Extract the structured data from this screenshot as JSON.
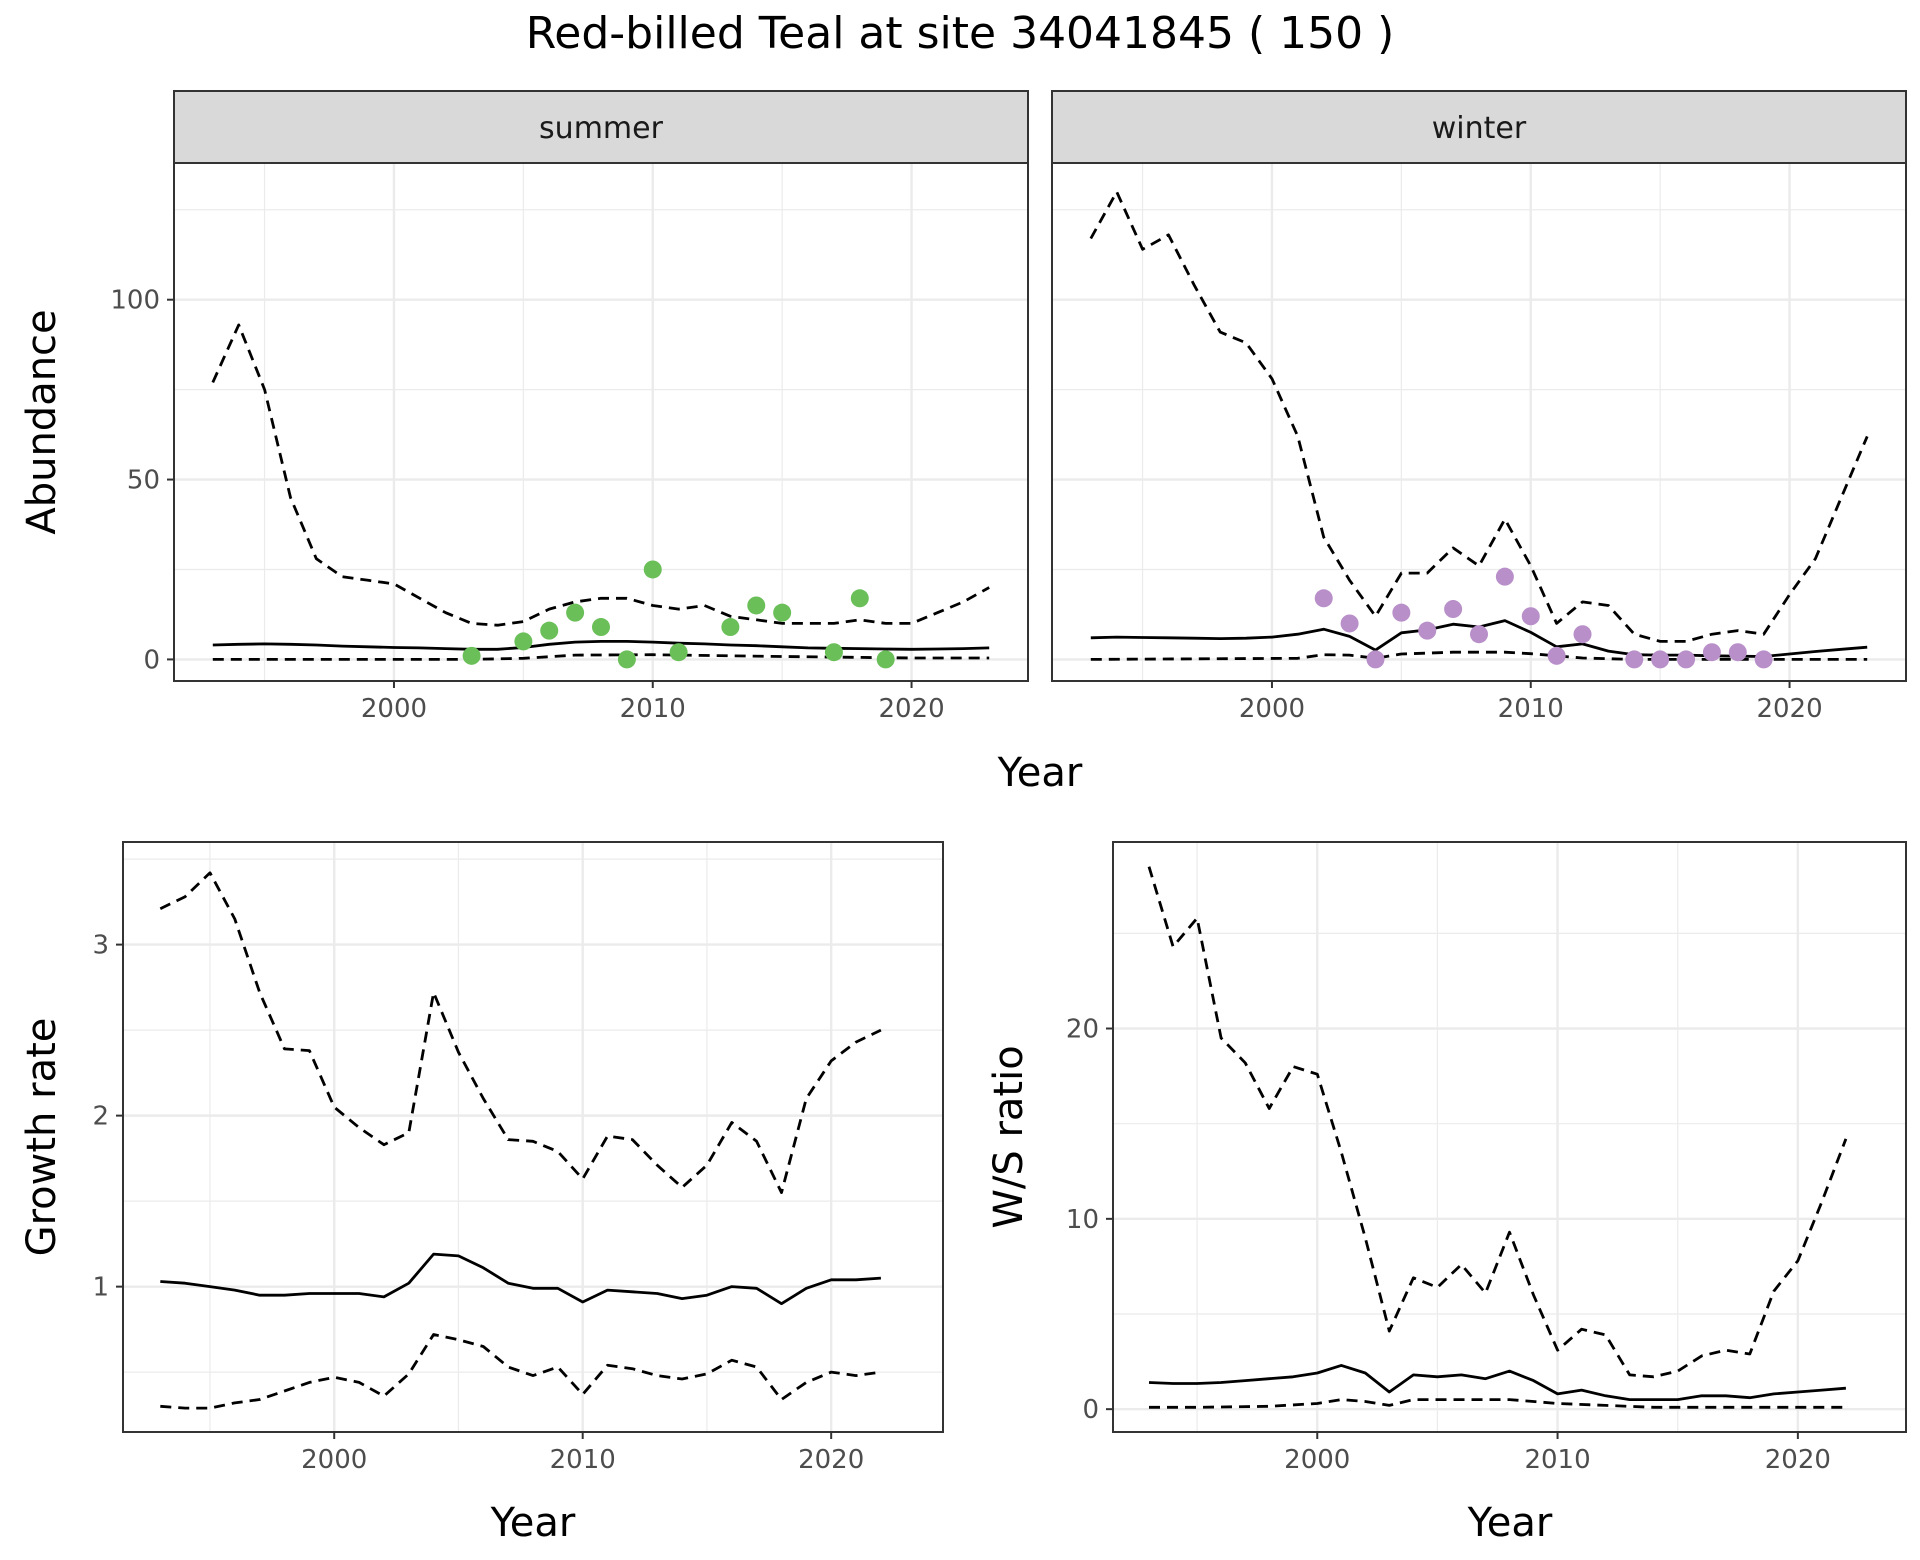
{
  "title": "Red-billed Teal at site 34041845 ( 150 )",
  "colors": {
    "summer_points": "#6abf59",
    "winter_points": "#b88fc9",
    "line": "#000000",
    "strip_bg": "#d9d9d9",
    "grid": "#ebebeb"
  },
  "chart_data": [
    {
      "id": "abundance",
      "type": "line",
      "ylabel": "Abundance",
      "xlabel": "Year",
      "xlim": [
        1991.5,
        2024.5
      ],
      "ylim": [
        -6,
        138
      ],
      "xticks": [
        2000,
        2010,
        2020
      ],
      "yticks": [
        0,
        50,
        100
      ],
      "grid": true,
      "facets": [
        {
          "strip": "summer",
          "point_color": "summer_points",
          "observed": {
            "x": [
              2003,
              2005,
              2006,
              2007,
              2008,
              2009,
              2010,
              2011,
              2013,
              2014,
              2015,
              2017,
              2018,
              2019
            ],
            "y": [
              1,
              5,
              8,
              13,
              9,
              0,
              25,
              2,
              9,
              15,
              13,
              2,
              17,
              0
            ]
          },
          "series": [
            {
              "name": "estimate",
              "dash": "solid",
              "x": [
                1993,
                1994,
                1995,
                1996,
                1997,
                1998,
                1999,
                2000,
                2001,
                2002,
                2003,
                2004,
                2005,
                2006,
                2007,
                2008,
                2009,
                2010,
                2011,
                2012,
                2013,
                2014,
                2015,
                2016,
                2017,
                2018,
                2019,
                2020,
                2021,
                2022,
                2023
              ],
              "y": [
                4,
                4.2,
                4.3,
                4.2,
                4,
                3.7,
                3.5,
                3.3,
                3.2,
                3,
                2.8,
                2.8,
                3.3,
                4.2,
                4.8,
                5,
                5,
                4.8,
                4.5,
                4.3,
                4,
                3.8,
                3.5,
                3.2,
                3.1,
                3,
                2.9,
                2.8,
                2.9,
                3,
                3.2
              ]
            },
            {
              "name": "upper",
              "dash": "dashed",
              "x": [
                1993,
                1994,
                1995,
                1996,
                1997,
                1998,
                1999,
                2000,
                2001,
                2002,
                2003,
                2004,
                2005,
                2006,
                2007,
                2008,
                2009,
                2010,
                2011,
                2012,
                2013,
                2014,
                2015,
                2016,
                2017,
                2018,
                2019,
                2020,
                2021,
                2022,
                2023
              ],
              "y": [
                77,
                93,
                75,
                45,
                28,
                23,
                22,
                21,
                17,
                13,
                10,
                9.5,
                10.5,
                14,
                16,
                17,
                17,
                15,
                14,
                15,
                12,
                11,
                10,
                10,
                10,
                11,
                10,
                10,
                13,
                16,
                20
              ]
            },
            {
              "name": "lower",
              "dash": "dashed",
              "x": [
                1993,
                1995,
                2000,
                2003,
                2005,
                2007,
                2010,
                2015,
                2020,
                2023
              ],
              "y": [
                0,
                0,
                0,
                0,
                0.3,
                1.2,
                1.3,
                0.8,
                0.4,
                0.4
              ]
            }
          ]
        },
        {
          "strip": "winter",
          "point_color": "winter_points",
          "observed": {
            "x": [
              2002,
              2003,
              2004,
              2005,
              2006,
              2007,
              2008,
              2009,
              2010,
              2011,
              2012,
              2014,
              2015,
              2016,
              2017,
              2018,
              2019
            ],
            "y": [
              17,
              10,
              0,
              13,
              8,
              14,
              7,
              23,
              12,
              1,
              7,
              0,
              0,
              0,
              2,
              2,
              0
            ]
          },
          "series": [
            {
              "name": "estimate",
              "dash": "solid",
              "x": [
                1993,
                1994,
                1995,
                1996,
                1997,
                1998,
                1999,
                2000,
                2001,
                2002,
                2003,
                2004,
                2005,
                2006,
                2007,
                2008,
                2009,
                2010,
                2011,
                2012,
                2013,
                2014,
                2015,
                2016,
                2017,
                2018,
                2019,
                2020,
                2021,
                2022,
                2023
              ],
              "y": [
                6,
                6.2,
                6.1,
                6,
                5.9,
                5.8,
                5.9,
                6.2,
                7,
                8.4,
                6.4,
                2.6,
                7.4,
                8.2,
                9.8,
                9,
                10.8,
                7.5,
                3.5,
                4.3,
                2.3,
                1.3,
                1.2,
                1.2,
                1,
                0.9,
                0.8,
                1.5,
                2.2,
                2.8,
                3.4
              ]
            },
            {
              "name": "upper",
              "dash": "dashed",
              "x": [
                1993,
                1994,
                1995,
                1996,
                1997,
                1998,
                1999,
                2000,
                2001,
                2002,
                2003,
                2004,
                2005,
                2006,
                2007,
                2008,
                2009,
                2010,
                2011,
                2012,
                2013,
                2014,
                2015,
                2016,
                2017,
                2018,
                2019,
                2020,
                2021,
                2022,
                2023
              ],
              "y": [
                117,
                130,
                114,
                118,
                104,
                91,
                88,
                78,
                62,
                34,
                22,
                12,
                24,
                24,
                31,
                26,
                39,
                26,
                10,
                16,
                15,
                7,
                5,
                5,
                7,
                8,
                7,
                18,
                28,
                45,
                62
              ]
            },
            {
              "name": "lower",
              "dash": "dashed",
              "x": [
                1993,
                2001,
                2002,
                2003,
                2004,
                2005,
                2007,
                2009,
                2010,
                2012,
                2014,
                2023
              ],
              "y": [
                0,
                0.3,
                1.3,
                1.2,
                0.3,
                1.5,
                2,
                2,
                1.6,
                0.4,
                0,
                0
              ]
            }
          ]
        }
      ]
    },
    {
      "id": "growth_rate",
      "type": "line",
      "ylabel": "Growth rate",
      "xlabel": "Year",
      "xlim": [
        1991.5,
        2024.5
      ],
      "ylim": [
        0.15,
        3.6
      ],
      "xticks": [
        2000,
        2010,
        2020
      ],
      "yticks": [
        1,
        2,
        3
      ],
      "grid": true,
      "series": [
        {
          "name": "estimate",
          "dash": "solid",
          "x": [
            1993,
            1994,
            1995,
            1996,
            1997,
            1998,
            1999,
            2000,
            2001,
            2002,
            2003,
            2004,
            2005,
            2006,
            2007,
            2008,
            2009,
            2010,
            2011,
            2012,
            2013,
            2014,
            2015,
            2016,
            2017,
            2018,
            2019,
            2020,
            2021,
            2022
          ],
          "y": [
            1.03,
            1.02,
            1,
            0.98,
            0.95,
            0.95,
            0.96,
            0.96,
            0.96,
            0.94,
            1.02,
            1.19,
            1.18,
            1.11,
            1.02,
            0.99,
            0.99,
            0.91,
            0.98,
            0.97,
            0.96,
            0.93,
            0.95,
            1,
            0.99,
            0.9,
            0.99,
            1.04,
            1.04,
            1.05
          ]
        },
        {
          "name": "upper",
          "dash": "dashed",
          "x": [
            1993,
            1994,
            1995,
            1996,
            1997,
            1998,
            1999,
            2000,
            2001,
            2002,
            2003,
            2004,
            2005,
            2006,
            2007,
            2008,
            2009,
            2010,
            2011,
            2012,
            2013,
            2014,
            2015,
            2016,
            2017,
            2018,
            2019,
            2020,
            2021,
            2022
          ],
          "y": [
            3.21,
            3.28,
            3.42,
            3.15,
            2.72,
            2.39,
            2.38,
            2.05,
            1.93,
            1.83,
            1.9,
            2.72,
            2.37,
            2.1,
            1.86,
            1.85,
            1.79,
            1.63,
            1.88,
            1.86,
            1.71,
            1.58,
            1.71,
            1.96,
            1.85,
            1.55,
            2.1,
            2.32,
            2.43,
            2.5
          ]
        },
        {
          "name": "lower",
          "dash": "dashed",
          "x": [
            1993,
            1994,
            1995,
            1996,
            1997,
            1998,
            1999,
            2000,
            2001,
            2002,
            2003,
            2004,
            2005,
            2006,
            2007,
            2008,
            2009,
            2010,
            2011,
            2012,
            2013,
            2014,
            2015,
            2016,
            2017,
            2018,
            2019,
            2020,
            2021,
            2022
          ],
          "y": [
            0.3,
            0.29,
            0.29,
            0.32,
            0.34,
            0.39,
            0.44,
            0.47,
            0.44,
            0.36,
            0.49,
            0.72,
            0.69,
            0.65,
            0.53,
            0.48,
            0.53,
            0.37,
            0.54,
            0.52,
            0.48,
            0.46,
            0.49,
            0.57,
            0.53,
            0.34,
            0.44,
            0.5,
            0.48,
            0.5
          ]
        }
      ]
    },
    {
      "id": "ws_ratio",
      "type": "line",
      "ylabel": "W/S ratio",
      "xlabel": "Year",
      "xlim": [
        1991.5,
        2024.5
      ],
      "ylim": [
        -1.2,
        29.8
      ],
      "xticks": [
        2000,
        2010,
        2020
      ],
      "yticks": [
        0,
        10,
        20
      ],
      "grid": true,
      "series": [
        {
          "name": "estimate",
          "dash": "solid",
          "x": [
            1993,
            1994,
            1995,
            1996,
            1997,
            1998,
            1999,
            2000,
            2001,
            2002,
            2003,
            2004,
            2005,
            2006,
            2007,
            2008,
            2009,
            2010,
            2011,
            2012,
            2013,
            2014,
            2015,
            2016,
            2017,
            2018,
            2019,
            2020,
            2021,
            2022
          ],
          "y": [
            1.4,
            1.35,
            1.35,
            1.4,
            1.5,
            1.6,
            1.7,
            1.9,
            2.3,
            1.9,
            0.9,
            1.8,
            1.7,
            1.8,
            1.6,
            2,
            1.5,
            0.8,
            1,
            0.7,
            0.5,
            0.5,
            0.5,
            0.7,
            0.7,
            0.6,
            0.8,
            0.9,
            1,
            1.1
          ]
        },
        {
          "name": "upper",
          "dash": "dashed",
          "x": [
            1993,
            1994,
            1995,
            1996,
            1997,
            1998,
            1999,
            2000,
            2001,
            2002,
            2003,
            2004,
            2005,
            2006,
            2007,
            2008,
            2009,
            2010,
            2011,
            2012,
            2013,
            2014,
            2015,
            2016,
            2017,
            2018,
            2019,
            2020,
            2021,
            2022
          ],
          "y": [
            28.5,
            24.3,
            25.8,
            19.5,
            18.2,
            15.8,
            18,
            17.6,
            13.5,
            9,
            4.1,
            6.9,
            6.4,
            7.6,
            6.1,
            9.3,
            6,
            3.1,
            4.2,
            3.9,
            1.8,
            1.7,
            2,
            2.8,
            3.1,
            2.9,
            6.2,
            7.8,
            10.9,
            14.2
          ]
        },
        {
          "name": "lower",
          "dash": "dashed",
          "x": [
            1993,
            1995,
            1998,
            2000,
            2001,
            2002,
            2003,
            2004,
            2005,
            2006,
            2007,
            2008,
            2009,
            2010,
            2012,
            2014,
            2016,
            2018,
            2020,
            2022
          ],
          "y": [
            0.1,
            0.1,
            0.15,
            0.3,
            0.5,
            0.4,
            0.2,
            0.5,
            0.5,
            0.5,
            0.5,
            0.5,
            0.4,
            0.3,
            0.2,
            0.1,
            0.1,
            0.1,
            0.1,
            0.1
          ]
        }
      ]
    }
  ]
}
